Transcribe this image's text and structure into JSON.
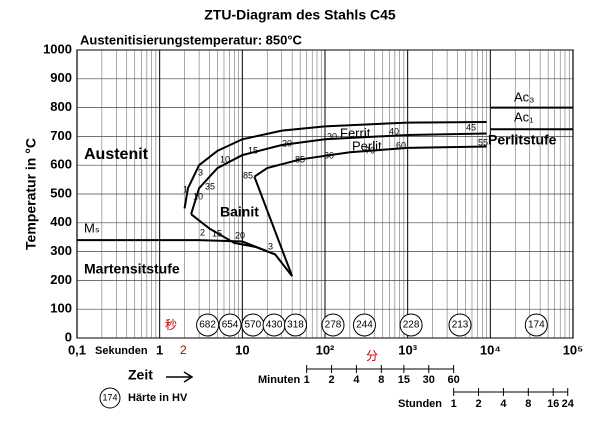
{
  "chart_data": {
    "type": "line",
    "title": "ZTU-Diagram des Stahls C45",
    "subtitle": "Austenitisierungstemperatur: 850°C",
    "ylabel": "Temperatur in °C",
    "xlabel": "Zeit",
    "xunit_label": "Sekunden",
    "minutes_label": "Minuten",
    "hours_label": "Stunden",
    "legend_sample": "174",
    "legend_text": "Härte in HV",
    "log_x": true,
    "grid": true,
    "xlim": [
      0.1,
      100000
    ],
    "ylim": [
      0,
      1000
    ],
    "xticks": [
      {
        "value": 0.1,
        "label": "0,1"
      },
      1,
      10,
      {
        "value": 100,
        "label": "10²"
      },
      {
        "value": 1000,
        "label": "10³"
      },
      {
        "value": 10000,
        "label": "10⁴"
      },
      {
        "value": 100000,
        "label": "10⁵"
      }
    ],
    "yticks": [
      0,
      100,
      200,
      300,
      400,
      500,
      600,
      700,
      800,
      900,
      1000
    ],
    "minute_ticks": [
      {
        "value": 60,
        "label": "1"
      },
      {
        "value": 120,
        "label": "2"
      },
      {
        "value": 240,
        "label": "4"
      },
      {
        "value": 480,
        "label": "8"
      },
      {
        "value": 900,
        "label": "15"
      },
      {
        "value": 1800,
        "label": "30"
      },
      {
        "value": 3600,
        "label": "60"
      }
    ],
    "hour_ticks": [
      {
        "value": 3600,
        "label": "1"
      },
      {
        "value": 7200,
        "label": "2"
      },
      {
        "value": 14400,
        "label": "4"
      },
      {
        "value": 28800,
        "label": "8"
      },
      {
        "value": 57600,
        "label": "16"
      },
      {
        "value": 86400,
        "label": "24"
      }
    ],
    "series": [
      {
        "name": "Ferrit",
        "color": "#000000",
        "x": [
          2.0,
          2.2,
          3,
          5,
          10,
          30,
          100,
          1000,
          9000
        ],
        "values": [
          450,
          520,
          600,
          650,
          690,
          720,
          735,
          748,
          750
        ]
      },
      {
        "name": "Perlit",
        "color": "#000000",
        "x": [
          2.4,
          3,
          5,
          10,
          30,
          100,
          1000,
          9000
        ],
        "values": [
          430,
          520,
          590,
          635,
          670,
          690,
          705,
          710
        ]
      },
      {
        "name": "Perlitende",
        "color": "#000000",
        "x": [
          14,
          20,
          50,
          200,
          1000,
          9000
        ],
        "values": [
          560,
          590,
          620,
          645,
          660,
          665
        ]
      },
      {
        "name": "Bainitende",
        "color": "#000000",
        "x": [
          14,
          40
        ],
        "values": [
          560,
          215
        ]
      },
      {
        "name": "Bainitstart",
        "color": "#000000",
        "x": [
          2.4,
          4,
          8,
          15,
          25,
          40
        ],
        "values": [
          430,
          380,
          330,
          315,
          290,
          215
        ]
      },
      {
        "name": "Ms",
        "color": "#000000",
        "x": [
          0.1,
          3,
          10,
          25
        ],
        "values": [
          340,
          340,
          335,
          290
        ]
      },
      {
        "name": "Ac3",
        "color": "#000000",
        "x": [
          10000,
          100000
        ],
        "values": [
          800,
          800
        ]
      },
      {
        "name": "Ac1",
        "color": "#000000",
        "x": [
          10000,
          100000
        ],
        "values": [
          725,
          725
        ]
      }
    ],
    "hardness": {
      "x": [
        3.8,
        7.1,
        13.4,
        24.2,
        44,
        125,
        300,
        1100,
        4300,
        36000
      ],
      "values": [
        682,
        654,
        570,
        430,
        318,
        278,
        244,
        228,
        213,
        174
      ]
    },
    "annotations": [
      "Austenit",
      "Ferrit",
      "Perlit",
      "Bainit",
      "Martensitstufe",
      "Perlitstufe",
      "Ac₃",
      "Ac₁",
      "Mₛ",
      "1",
      "3",
      "10",
      "15",
      "20",
      "30",
      "40",
      "45",
      "10",
      "35",
      "85",
      "80",
      "70",
      "60",
      "55",
      "85",
      "2",
      "15",
      "20",
      "3"
    ],
    "red_labels": [
      "秒",
      "2",
      "分"
    ]
  }
}
